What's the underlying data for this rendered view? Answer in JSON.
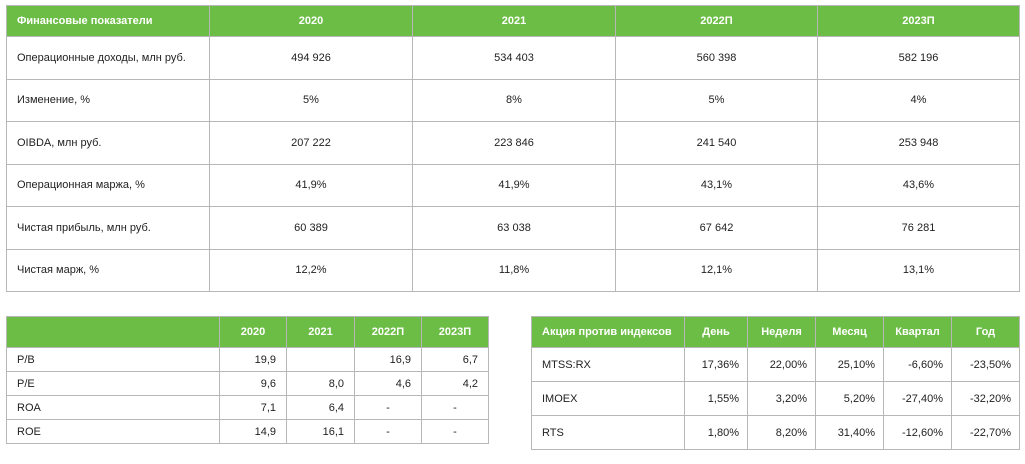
{
  "financials": {
    "headers": [
      "Финансовые показатели",
      "2020",
      "2021",
      "2022П",
      "2023П"
    ],
    "rows": [
      [
        "Операционные доходы, млн руб.",
        "494 926",
        "534 403",
        "560 398",
        "582 196"
      ],
      [
        "Изменение, %",
        "5%",
        "8%",
        "5%",
        "4%"
      ],
      [
        "OIBDA, млн руб.",
        "207 222",
        "223 846",
        "241 540",
        "253 948"
      ],
      [
        "Операционная маржа, %",
        "41,9%",
        "41,9%",
        "43,1%",
        "43,6%"
      ],
      [
        "Чистая прибыль, млн руб.",
        "60 389",
        "63 038",
        "67 642",
        "76 281"
      ],
      [
        "Чистая марж, %",
        "12,2%",
        "11,8%",
        "12,1%",
        "13,1%"
      ]
    ]
  },
  "multiples": {
    "headers": [
      "",
      "2020",
      "2021",
      "2022П",
      "2023П"
    ],
    "rows": [
      [
        "P/B",
        "19,9",
        "",
        "16,9",
        "6,7"
      ],
      [
        "P/E",
        "9,6",
        "8,0",
        "4,6",
        "4,2"
      ],
      [
        "ROA",
        "7,1",
        "6,4",
        "-",
        "-"
      ],
      [
        "ROE",
        "14,9",
        "16,1",
        "-",
        "-"
      ]
    ]
  },
  "index_compare": {
    "headers": [
      "Акция против индексов",
      "День",
      "Неделя",
      "Месяц",
      "Квартал",
      "Год"
    ],
    "rows": [
      [
        "MTSS:RX",
        "17,36%",
        "22,00%",
        "25,10%",
        "-6,60%",
        "-23,50%"
      ],
      [
        "IMOEX",
        "1,55%",
        "3,20%",
        "5,20%",
        "-27,40%",
        "-32,20%"
      ],
      [
        "RTS",
        "1,80%",
        "8,20%",
        "31,40%",
        "-12,60%",
        "-22,70%"
      ]
    ]
  }
}
